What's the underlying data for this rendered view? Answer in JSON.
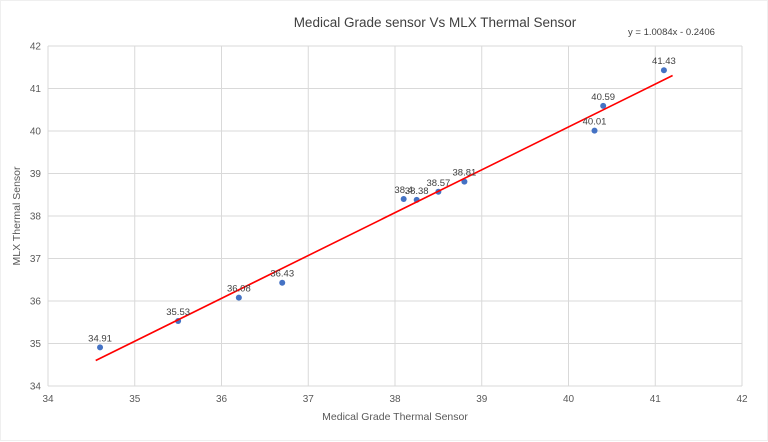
{
  "chart": {
    "title": "Medical Grade sensor Vs MLX Thermal Sensor",
    "equation": "y = 1.0084x - 0.2406"
  },
  "chart_data": {
    "type": "scatter",
    "title": "Medical Grade sensor Vs MLX Thermal Sensor",
    "xlabel": "Medical Grade Thermal Sensor",
    "ylabel": "MLX Thermal Sensor",
    "xlim": [
      34,
      42
    ],
    "ylim": [
      34,
      42
    ],
    "xticks": [
      34,
      35,
      36,
      37,
      38,
      39,
      40,
      41,
      42
    ],
    "yticks": [
      34,
      35,
      36,
      37,
      38,
      39,
      40,
      41,
      42
    ],
    "grid": true,
    "legend": false,
    "point_color": "#4472c4",
    "gridline_color": "#d9d9d9",
    "label_color": "#404040",
    "tick_color": "#595959",
    "trendline": {
      "type": "linear",
      "slope": 1.0084,
      "intercept": -0.2406,
      "equation": "y = 1.0084x - 0.2406",
      "color": "#ff0000",
      "x_start": 34.55,
      "x_end": 41.2
    },
    "points": [
      {
        "x": 34.6,
        "y": 34.91,
        "label": "34.91"
      },
      {
        "x": 35.5,
        "y": 35.53,
        "label": "35.53"
      },
      {
        "x": 36.2,
        "y": 36.08,
        "label": "36.08"
      },
      {
        "x": 36.7,
        "y": 36.43,
        "label": "36.43"
      },
      {
        "x": 38.1,
        "y": 38.4,
        "label": "38.4"
      },
      {
        "x": 38.25,
        "y": 38.38,
        "label": "38.38"
      },
      {
        "x": 38.5,
        "y": 38.57,
        "label": "38.57"
      },
      {
        "x": 38.8,
        "y": 38.81,
        "label": "38.81"
      },
      {
        "x": 40.3,
        "y": 40.01,
        "label": "40.01"
      },
      {
        "x": 40.4,
        "y": 40.59,
        "label": "40.59"
      },
      {
        "x": 41.1,
        "y": 41.43,
        "label": "41.43"
      }
    ]
  }
}
